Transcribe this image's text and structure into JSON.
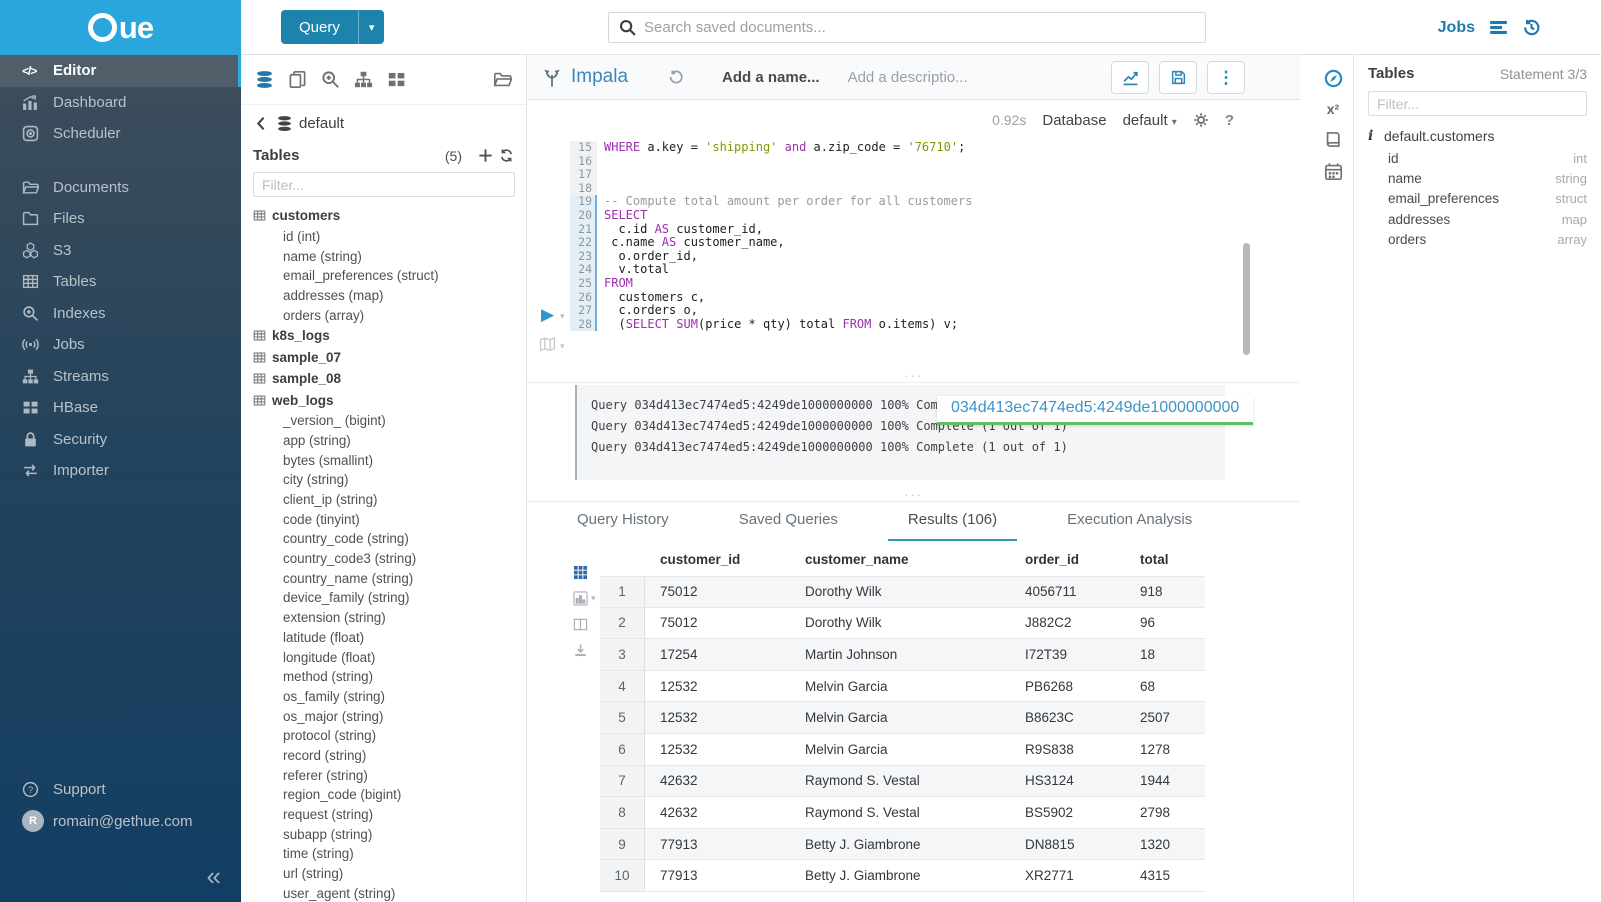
{
  "colors": {
    "brand_blue": "#2ba6dc",
    "button_blue": "#1d83ad",
    "link_blue": "#1b7cab",
    "active_tab_underline": "#2d9dc6",
    "popover_green": "#60bd68",
    "code_keyword": "#9b2fae",
    "code_string": "#7d9a02"
  },
  "topbar": {
    "query_button": "Query",
    "search_placeholder": "Search saved documents...",
    "jobs_label": "Jobs"
  },
  "sidebar": {
    "items": [
      {
        "label": "Editor",
        "icon": "code",
        "active": true
      },
      {
        "label": "Dashboard",
        "icon": "dashboard"
      },
      {
        "label": "Scheduler",
        "icon": "scheduler"
      },
      {
        "label": "Documents",
        "icon": "documents",
        "group_start": true
      },
      {
        "label": "Files",
        "icon": "files"
      },
      {
        "label": "S3",
        "icon": "s3"
      },
      {
        "label": "Tables",
        "icon": "tables"
      },
      {
        "label": "Indexes",
        "icon": "indexes"
      },
      {
        "label": "Jobs",
        "icon": "jobs"
      },
      {
        "label": "Streams",
        "icon": "streams"
      },
      {
        "label": "HBase",
        "icon": "hbase"
      },
      {
        "label": "Security",
        "icon": "security"
      },
      {
        "label": "Importer",
        "icon": "importer"
      }
    ],
    "support_label": "Support",
    "user_email": "romain@gethue.com",
    "avatar_initial": "R"
  },
  "browser": {
    "database": "default",
    "title": "Tables",
    "count": "(5)",
    "filter_placeholder": "Filter...",
    "tables": [
      {
        "name": "customers",
        "columns": [
          "id (int)",
          "name (string)",
          "email_preferences (struct)",
          "addresses (map)",
          "orders (array)"
        ]
      },
      {
        "name": "k8s_logs",
        "columns": []
      },
      {
        "name": "sample_07",
        "columns": []
      },
      {
        "name": "sample_08",
        "columns": []
      },
      {
        "name": "web_logs",
        "columns": [
          "_version_ (bigint)",
          "app (string)",
          "bytes (smallint)",
          "city (string)",
          "client_ip (string)",
          "code (tinyint)",
          "country_code (string)",
          "country_code3 (string)",
          "country_name (string)",
          "device_family (string)",
          "extension (string)",
          "latitude (float)",
          "longitude (float)",
          "method (string)",
          "os_family (string)",
          "os_major (string)",
          "protocol (string)",
          "record (string)",
          "referer (string)",
          "region_code (bigint)",
          "request (string)",
          "subapp (string)",
          "time (string)",
          "url (string)",
          "user_agent (string)"
        ]
      }
    ]
  },
  "editor": {
    "engine": "Impala",
    "name_placeholder": "Add a name...",
    "desc_placeholder": "Add a descriptio...",
    "duration": "0.92s",
    "database_label": "Database",
    "database_value": "default",
    "code_lines": [
      {
        "no": 15,
        "seg": [
          [
            "k",
            "WHERE"
          ],
          [
            "t",
            " a.key = "
          ],
          [
            "s",
            "'shipping'"
          ],
          [
            "t",
            " "
          ],
          [
            "k",
            "and"
          ],
          [
            "t",
            " a.zip_code = "
          ],
          [
            "s",
            "'76710'"
          ],
          [
            "t",
            ";"
          ]
        ]
      },
      {
        "no": 16,
        "seg": []
      },
      {
        "no": 17,
        "seg": []
      },
      {
        "no": 18,
        "seg": []
      },
      {
        "no": 19,
        "hl": true,
        "seg": [
          [
            "c",
            "-- Compute total amount per order for all customers"
          ]
        ]
      },
      {
        "no": 20,
        "hl": true,
        "seg": [
          [
            "k",
            "SELECT"
          ]
        ]
      },
      {
        "no": 21,
        "hl": true,
        "seg": [
          [
            "t",
            "  c.id "
          ],
          [
            "k",
            "AS"
          ],
          [
            "t",
            " customer_id,"
          ]
        ]
      },
      {
        "no": 22,
        "hl": true,
        "seg": [
          [
            "t",
            " c.name "
          ],
          [
            "k",
            "AS"
          ],
          [
            "t",
            " customer_name,"
          ]
        ]
      },
      {
        "no": 23,
        "hl": true,
        "seg": [
          [
            "t",
            "  o.order_id,"
          ]
        ]
      },
      {
        "no": 24,
        "hl": true,
        "seg": [
          [
            "t",
            "  v.total"
          ]
        ]
      },
      {
        "no": 25,
        "hl": true,
        "seg": [
          [
            "k",
            "FROM"
          ]
        ]
      },
      {
        "no": 26,
        "hl": true,
        "seg": [
          [
            "t",
            "  customers c,"
          ]
        ]
      },
      {
        "no": 27,
        "hl": true,
        "seg": [
          [
            "t",
            "  c.orders o,"
          ]
        ]
      },
      {
        "no": 28,
        "hl": true,
        "seg": [
          [
            "t",
            "  ("
          ],
          [
            "k",
            "SELECT"
          ],
          [
            "t",
            " "
          ],
          [
            "k",
            "SUM"
          ],
          [
            "t",
            "(price * qty) total "
          ],
          [
            "k",
            "FROM"
          ],
          [
            "t",
            " o.items) v;"
          ]
        ]
      }
    ]
  },
  "logs": {
    "line": "Query 034d413ec7474ed5:4249de1000000000 100% Complete (1 out of 1)",
    "count": 3,
    "popover_text": "034d413ec7474ed5:4249de1000000000"
  },
  "tabs": [
    {
      "label": "Query History"
    },
    {
      "label": "Saved Queries"
    },
    {
      "label": "Results (106)",
      "active": true
    },
    {
      "label": "Execution Analysis"
    }
  ],
  "results": {
    "headers": [
      "customer_id",
      "customer_name",
      "order_id",
      "total"
    ],
    "rows": [
      [
        "1",
        "75012",
        "Dorothy Wilk",
        "4056711",
        "918"
      ],
      [
        "2",
        "75012",
        "Dorothy Wilk",
        "J882C2",
        "96"
      ],
      [
        "3",
        "17254",
        "Martin Johnson",
        "I72T39",
        "18"
      ],
      [
        "4",
        "12532",
        "Melvin Garcia",
        "PB6268",
        "68"
      ],
      [
        "5",
        "12532",
        "Melvin Garcia",
        "B8623C",
        "2507"
      ],
      [
        "6",
        "12532",
        "Melvin Garcia",
        "R9S838",
        "1278"
      ],
      [
        "7",
        "42632",
        "Raymond S. Vestal",
        "HS3124",
        "1944"
      ],
      [
        "8",
        "42632",
        "Raymond S. Vestal",
        "BS5902",
        "2798"
      ],
      [
        "9",
        "77913",
        "Betty J. Giambrone",
        "DN8815",
        "1320"
      ],
      [
        "10",
        "77913",
        "Betty J. Giambrone",
        "XR2771",
        "4315"
      ]
    ]
  },
  "assist": {
    "title": "Tables",
    "statement": "Statement 3/3",
    "filter_placeholder": "Filter...",
    "table": "default.customers",
    "columns": [
      {
        "name": "id",
        "type": "int"
      },
      {
        "name": "name",
        "type": "string"
      },
      {
        "name": "email_preferences",
        "type": "struct"
      },
      {
        "name": "addresses",
        "type": "map"
      },
      {
        "name": "orders",
        "type": "array"
      }
    ]
  }
}
